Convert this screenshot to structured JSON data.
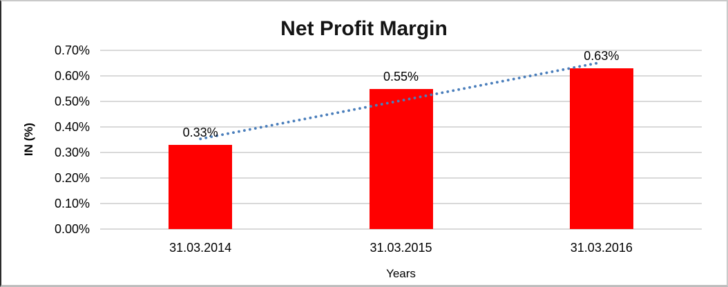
{
  "chart_data": {
    "type": "bar",
    "title": "Net Profit Margin",
    "xlabel": "Years",
    "ylabel": "IN (%)",
    "categories": [
      "31.03.2014",
      "31.03.2015",
      "31.03.2016"
    ],
    "values": [
      0.33,
      0.55,
      0.63
    ],
    "data_labels": [
      "0.33%",
      "0.55%",
      "0.63%"
    ],
    "ylim": [
      0,
      0.7
    ],
    "yticks": [
      {
        "value": 0.0,
        "label": "0.00%"
      },
      {
        "value": 0.1,
        "label": "0.10%"
      },
      {
        "value": 0.2,
        "label": "0.20%"
      },
      {
        "value": 0.3,
        "label": "0.30%"
      },
      {
        "value": 0.4,
        "label": "0.40%"
      },
      {
        "value": 0.5,
        "label": "0.50%"
      },
      {
        "value": 0.6,
        "label": "0.60%"
      },
      {
        "value": 0.7,
        "label": "0.70%"
      }
    ],
    "grid": true,
    "legend_position": "none",
    "bar_color": "#ff0000",
    "gridline_color": "#d9d9d9",
    "trendline": {
      "type": "linear",
      "style": "dotted",
      "color": "#4a7ebb",
      "start_value": 0.3533,
      "end_value": 0.6533
    }
  }
}
